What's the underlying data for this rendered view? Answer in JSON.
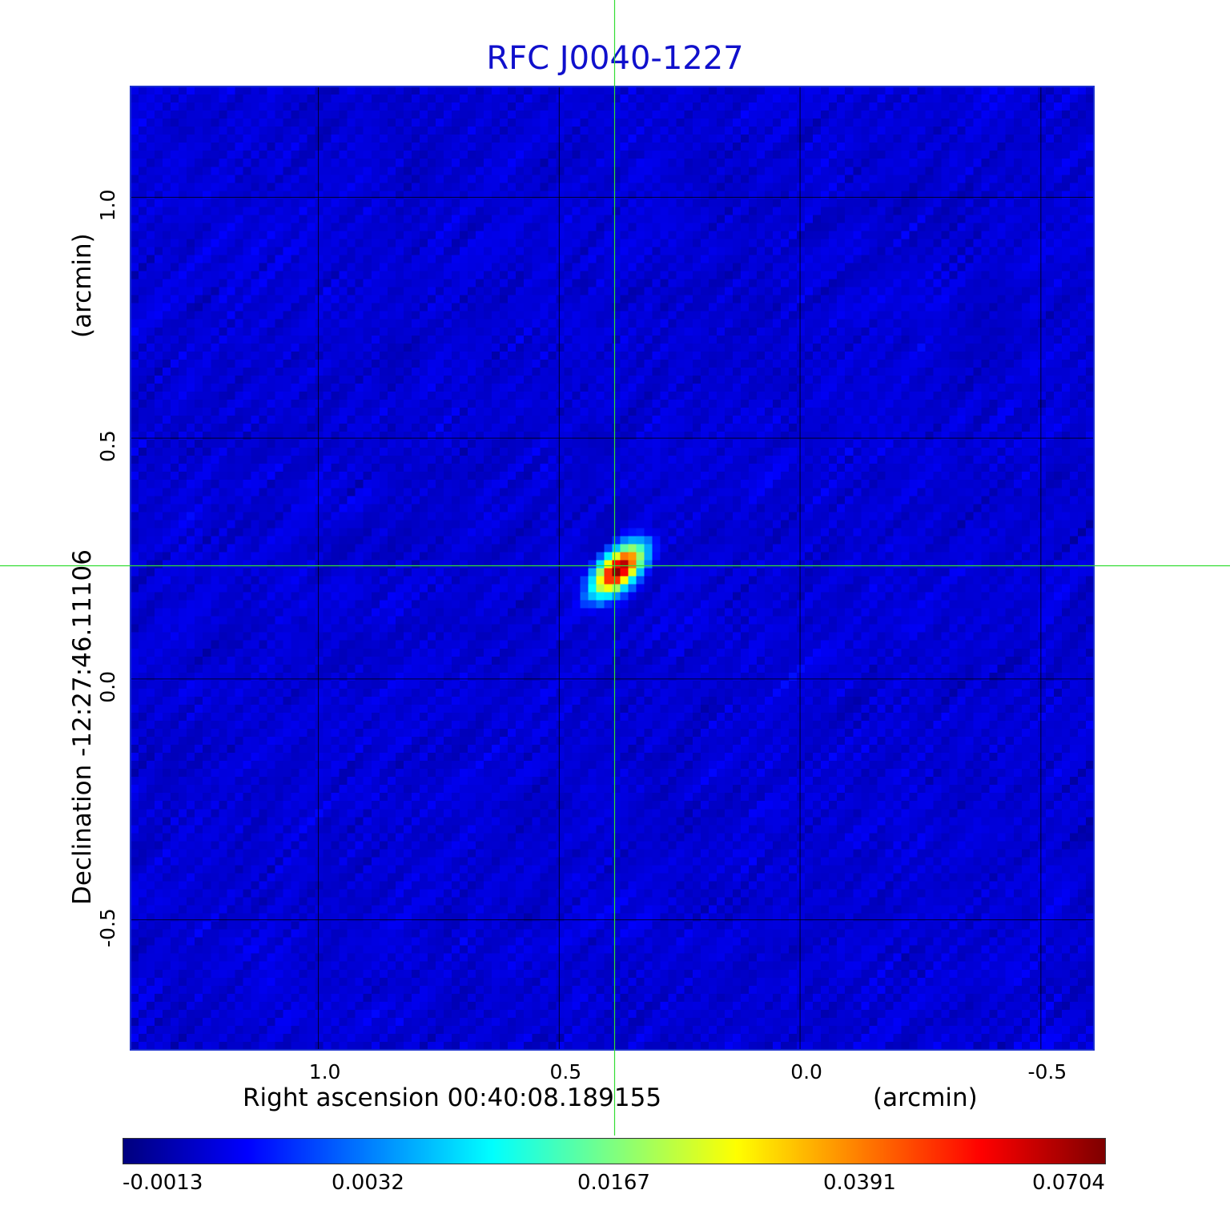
{
  "title": "RFC J0040-1227",
  "chart_data": {
    "type": "heatmap",
    "title": "RFC J0040-1227",
    "xlabel": "Right ascension  00:40:08.189155",
    "xunit": "(arcmin)",
    "ylabel": "Declination  -12:27:46.11106",
    "yunit": "(arcmin)",
    "x_ticks": [
      1.0,
      0.5,
      0.0,
      -0.5
    ],
    "x_tick_labels": [
      "1.0",
      "0.5",
      "0.0",
      "-0.5"
    ],
    "y_ticks": [
      1.0,
      0.5,
      0.0,
      -0.5
    ],
    "y_tick_labels": [
      "1.0",
      "0.5",
      "0.0",
      "-0.5"
    ],
    "xlim": [
      1.39,
      -0.61
    ],
    "ylim": [
      -0.77,
      1.23
    ],
    "grid": true,
    "crosshair": {
      "x": 0.385,
      "y": 0.235,
      "color": "#33dd33"
    },
    "source": {
      "x": 0.385,
      "y": 0.235,
      "peak": 0.0704
    },
    "colorbar": {
      "colormap": "jet",
      "tick_labels": [
        "-0.0013",
        "0.0032",
        "0.0167",
        "0.0391",
        "0.0704"
      ],
      "min": -0.0013,
      "max": 0.0704
    }
  }
}
